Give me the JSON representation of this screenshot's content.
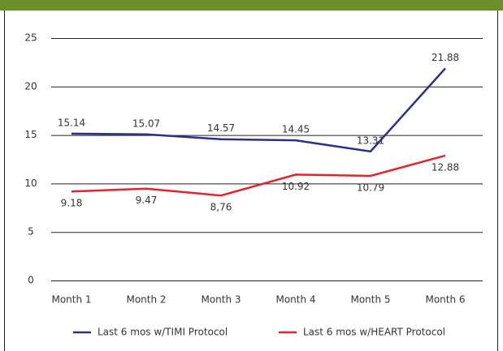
{
  "chart_data": {
    "type": "line",
    "categories": [
      "Month 1",
      "Month 2",
      "Month 3",
      "Month 4",
      "Month 5",
      "Month 6"
    ],
    "series": [
      {
        "name": "Last 6 mos w/TIMI Protocol",
        "color": "#2e2d8c",
        "values": [
          15.14,
          15.07,
          14.57,
          14.45,
          13.31,
          21.88
        ]
      },
      {
        "name": "Last 6 mos w/HEART Protocol",
        "color": "#e3242b",
        "values": [
          9.18,
          9.47,
          8.76,
          10.92,
          10.79,
          12.88
        ],
        "value_labels": [
          "9.18",
          "9.47",
          "8,76",
          "10.92",
          "10.79",
          "12.88"
        ]
      }
    ],
    "ylim": [
      0,
      25
    ],
    "yticks": [
      0,
      5,
      10,
      15,
      20,
      25
    ],
    "grid": true,
    "legend": "bottom"
  }
}
